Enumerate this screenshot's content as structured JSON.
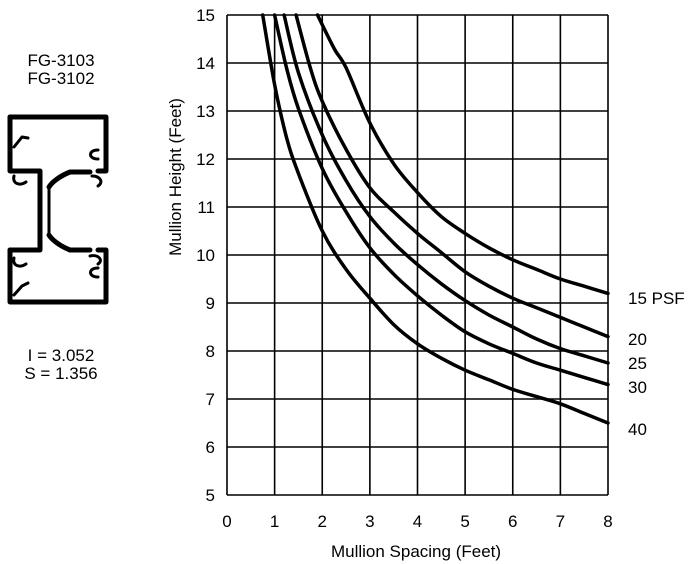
{
  "profile": {
    "names": [
      "FG-3103",
      "FG-3102"
    ],
    "moment_of_inertia": "I = 3.052",
    "section_modulus": "S = 1.356"
  },
  "chart_data": {
    "type": "line",
    "title": "",
    "xlabel": "Mullion Spacing (Feet)",
    "ylabel": "Mullion Height (Feet)",
    "xlim": [
      0,
      8
    ],
    "ylim": [
      5,
      15
    ],
    "xticks": [
      0,
      1,
      2,
      3,
      4,
      5,
      6,
      7,
      8
    ],
    "yticks": [
      5,
      6,
      7,
      8,
      9,
      10,
      11,
      12,
      13,
      14,
      15
    ],
    "grid": true,
    "series_labels": [
      "15 PSF",
      "20",
      "25",
      "30",
      "40"
    ],
    "series": [
      {
        "name": "15 PSF",
        "x": [
          1.9,
          2.25,
          2.5,
          3,
          3.5,
          4,
          4.5,
          5,
          5.5,
          6,
          6.5,
          7,
          7.5,
          8
        ],
        "y": [
          15,
          14.3,
          13.9,
          12.75,
          11.9,
          11.3,
          10.8,
          10.45,
          10.15,
          9.9,
          9.7,
          9.5,
          9.35,
          9.2
        ]
      },
      {
        "name": "20",
        "x": [
          1.45,
          1.75,
          2,
          2.5,
          3,
          3.5,
          4,
          4.5,
          5,
          5.5,
          6,
          6.5,
          7,
          7.5,
          8
        ],
        "y": [
          15,
          13.9,
          13.2,
          12.2,
          11.4,
          10.9,
          10.45,
          10.05,
          9.65,
          9.35,
          9.1,
          8.9,
          8.7,
          8.5,
          8.3
        ]
      },
      {
        "name": "25",
        "x": [
          1.2,
          1.5,
          2,
          2.5,
          3,
          3.5,
          4,
          4.5,
          5,
          5.5,
          6,
          6.5,
          7,
          7.5,
          8
        ],
        "y": [
          15,
          13.8,
          12.5,
          11.55,
          10.8,
          10.25,
          9.8,
          9.4,
          9.05,
          8.75,
          8.5,
          8.25,
          8.05,
          7.9,
          7.75
        ]
      },
      {
        "name": "30",
        "x": [
          1,
          1.25,
          1.5,
          2,
          2.5,
          3,
          3.5,
          4,
          4.5,
          5,
          5.5,
          6,
          6.5,
          7,
          7.5,
          8
        ],
        "y": [
          15,
          13.9,
          13.05,
          11.8,
          10.9,
          10.15,
          9.6,
          9.15,
          8.75,
          8.4,
          8.15,
          7.95,
          7.75,
          7.6,
          7.45,
          7.3
        ]
      },
      {
        "name": "40",
        "x": [
          0.75,
          1,
          1.25,
          1.5,
          2,
          2.5,
          3,
          3.5,
          4,
          4.5,
          5,
          5.5,
          6,
          6.5,
          7,
          7.5,
          8
        ],
        "y": [
          15,
          13.55,
          12.45,
          11.7,
          10.5,
          9.7,
          9.1,
          8.55,
          8.15,
          7.85,
          7.6,
          7.4,
          7.2,
          7.05,
          6.9,
          6.7,
          6.5
        ]
      }
    ]
  }
}
